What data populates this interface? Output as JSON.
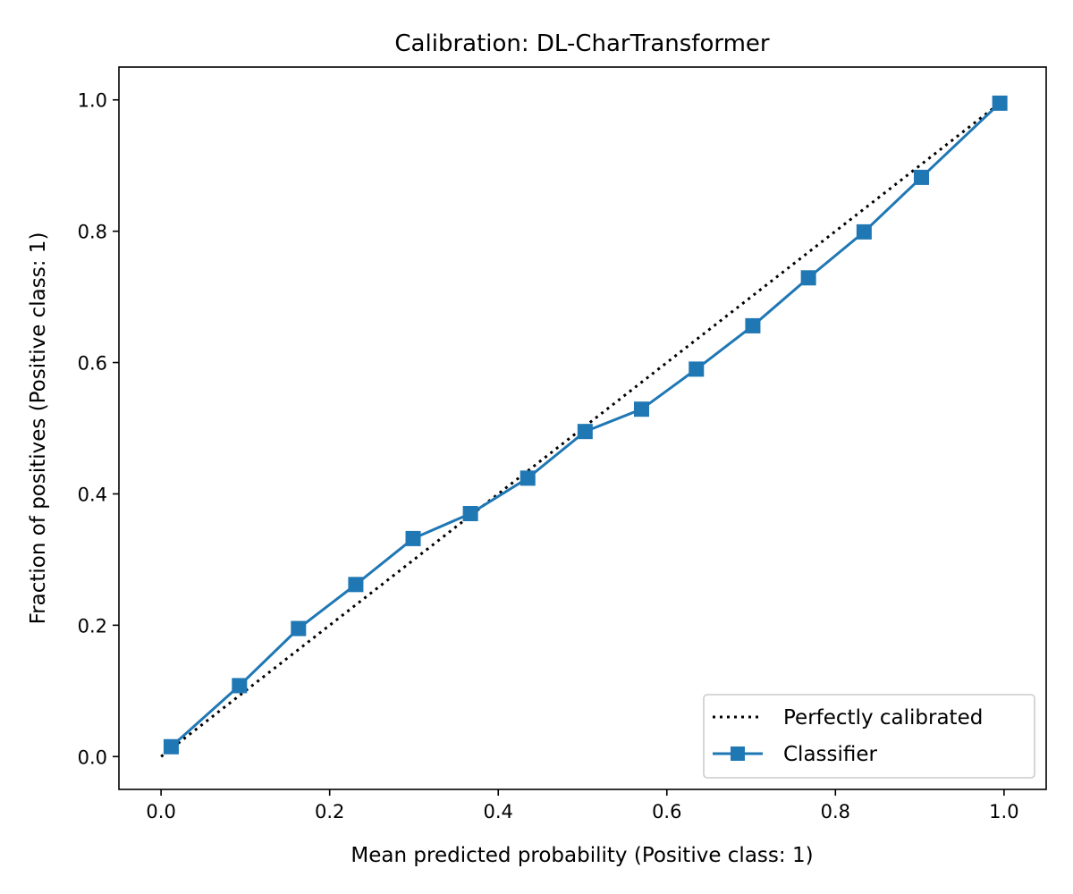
{
  "chart_data": {
    "type": "line",
    "title": "Calibration: DL-CharTransformer",
    "xlabel": "Mean predicted probability (Positive class: 1)",
    "ylabel": "Fraction of positives (Positive class: 1)",
    "xlim": [
      -0.05,
      1.05
    ],
    "ylim": [
      -0.05,
      1.05
    ],
    "xticks": [
      0.0,
      0.2,
      0.4,
      0.6,
      0.8,
      1.0
    ],
    "yticks": [
      0.0,
      0.2,
      0.4,
      0.6,
      0.8,
      1.0
    ],
    "xtick_labels": [
      "0.0",
      "0.2",
      "0.4",
      "0.6",
      "0.8",
      "1.0"
    ],
    "ytick_labels": [
      "0.0",
      "0.2",
      "0.4",
      "0.6",
      "0.8",
      "1.0"
    ],
    "grid": false,
    "legend_position": "lower-right",
    "series": [
      {
        "name": "Perfectly calibrated",
        "style": "dotted",
        "color": "#000000",
        "x": [
          0.0,
          1.0
        ],
        "y": [
          0.0,
          1.0
        ]
      },
      {
        "name": "Classifier",
        "style": "solid",
        "marker": "square",
        "color": "#1f77b4",
        "x": [
          0.012,
          0.093,
          0.163,
          0.231,
          0.299,
          0.367,
          0.435,
          0.503,
          0.57,
          0.635,
          0.702,
          0.768,
          0.834,
          0.902,
          0.995
        ],
        "y": [
          0.015,
          0.108,
          0.195,
          0.262,
          0.332,
          0.37,
          0.424,
          0.495,
          0.529,
          0.59,
          0.656,
          0.729,
          0.799,
          0.882,
          0.995
        ]
      }
    ]
  }
}
